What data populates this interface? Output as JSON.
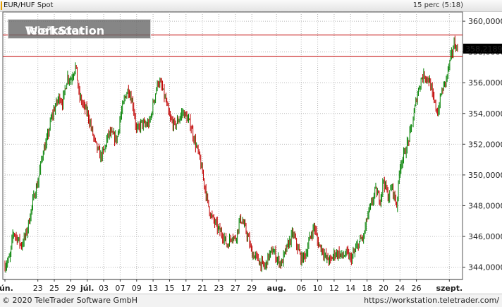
{
  "header": {
    "symbol": "EUR/HUF Spot",
    "interval": "15 perc (5:18)"
  },
  "watermark": {
    "brand": "TeleTrader",
    "product": "WorkStation"
  },
  "footer": {
    "copyright": "© 2020  TeleTrader Software GmbH",
    "url": "https://workstation.teletrader.com/"
  },
  "colors": {
    "up": "#008000",
    "down": "#c00000",
    "level_line": "#c00000",
    "grid": "#b8b8b8",
    "price_label_bg": "#000000"
  },
  "chart_data": {
    "type": "candlestick",
    "title": "EUR/HUF Spot",
    "ylim": [
      343.2,
      360.6
    ],
    "y_ticks": [
      344,
      346,
      348,
      350,
      352,
      354,
      356,
      358,
      360
    ],
    "y_tick_labels": [
      "344,0000",
      "346,0000",
      "348,0000",
      "350,0000",
      "352,0000",
      "354,0000",
      "356,0000",
      "358,0000",
      "360,0000"
    ],
    "x_ticks": [
      {
        "label": "jún.",
        "bold": true,
        "pos": 0
      },
      {
        "label": "23",
        "pos": 4
      },
      {
        "label": "25",
        "pos": 6
      },
      {
        "label": "29",
        "pos": 8
      },
      {
        "label": "júl.",
        "bold": true,
        "pos": 10
      },
      {
        "label": "03",
        "pos": 12
      },
      {
        "label": "07",
        "pos": 14
      },
      {
        "label": "09",
        "pos": 16
      },
      {
        "label": "13",
        "pos": 18
      },
      {
        "label": "15",
        "pos": 20
      },
      {
        "label": "17",
        "pos": 22
      },
      {
        "label": "21",
        "pos": 24
      },
      {
        "label": "23",
        "pos": 26
      },
      {
        "label": "27",
        "pos": 28
      },
      {
        "label": "29",
        "pos": 30
      },
      {
        "label": "aug.",
        "bold": true,
        "pos": 33
      },
      {
        "label": "06",
        "pos": 36
      },
      {
        "label": "10",
        "pos": 38
      },
      {
        "label": "12",
        "pos": 40
      },
      {
        "label": "14",
        "pos": 42
      },
      {
        "label": "18",
        "pos": 44
      },
      {
        "label": "20",
        "pos": 46
      },
      {
        "label": "24",
        "pos": 48
      },
      {
        "label": "26",
        "pos": 50
      },
      {
        "label": "szept.",
        "bold": true,
        "pos": 54
      }
    ],
    "grid": true,
    "level_lines": [
      359.1,
      357.7
    ],
    "last_price": 358.2189,
    "last_price_label": "358,2189",
    "path": [
      [
        0,
        344.1
      ],
      [
        0.6,
        344.6
      ],
      [
        1,
        346.3
      ],
      [
        1.6,
        345.8
      ],
      [
        2,
        345.4
      ],
      [
        2.6,
        346.2
      ],
      [
        3,
        347.2
      ],
      [
        3.6,
        348.8
      ],
      [
        4,
        349.5
      ],
      [
        4.6,
        351.5
      ],
      [
        5,
        352.0
      ],
      [
        5.6,
        353.6
      ],
      [
        6,
        354.3
      ],
      [
        6.6,
        355.1
      ],
      [
        7,
        354.7
      ],
      [
        7.6,
        356.4
      ],
      [
        8,
        356.2
      ],
      [
        8.6,
        357.1
      ],
      [
        9,
        355.2
      ],
      [
        9.6,
        354.4
      ],
      [
        10,
        354.1
      ],
      [
        10.6,
        352.8
      ],
      [
        11,
        352.0
      ],
      [
        11.6,
        351.2
      ],
      [
        12,
        351.5
      ],
      [
        12.6,
        352.7
      ],
      [
        13,
        352.6
      ],
      [
        13.6,
        352.3
      ],
      [
        14,
        353.7
      ],
      [
        14.6,
        355.1
      ],
      [
        15,
        355.6
      ],
      [
        15.6,
        354.5
      ],
      [
        16,
        352.8
      ],
      [
        16.6,
        353.4
      ],
      [
        17,
        353.2
      ],
      [
        17.6,
        353.4
      ],
      [
        18,
        354.6
      ],
      [
        18.6,
        356.1
      ],
      [
        19,
        355.8
      ],
      [
        19.6,
        354.7
      ],
      [
        20,
        353.7
      ],
      [
        20.6,
        353.2
      ],
      [
        21,
        353.5
      ],
      [
        21.6,
        354.1
      ],
      [
        22,
        353.8
      ],
      [
        22.6,
        353.2
      ],
      [
        23,
        352.3
      ],
      [
        23.6,
        351.2
      ],
      [
        24,
        350.1
      ],
      [
        24.6,
        348.3
      ],
      [
        25,
        347.4
      ],
      [
        25.6,
        346.8
      ],
      [
        26,
        346.4
      ],
      [
        26.6,
        346.0
      ],
      [
        27,
        345.4
      ],
      [
        27.6,
        346.1
      ],
      [
        28,
        345.8
      ],
      [
        28.6,
        347.2
      ],
      [
        29,
        346.8
      ],
      [
        29.6,
        345.8
      ],
      [
        30,
        344.9
      ],
      [
        30.6,
        344.6
      ],
      [
        31,
        344.3
      ],
      [
        31.6,
        344.0
      ],
      [
        32,
        344.7
      ],
      [
        32.6,
        345.1
      ],
      [
        33,
        344.6
      ],
      [
        33.6,
        344.2
      ],
      [
        34,
        344.9
      ],
      [
        34.6,
        345.7
      ],
      [
        35,
        346.2
      ],
      [
        35.6,
        345.2
      ],
      [
        36,
        344.5
      ],
      [
        36.6,
        344.9
      ],
      [
        37,
        345.8
      ],
      [
        37.6,
        346.7
      ],
      [
        38,
        345.6
      ],
      [
        38.6,
        345.1
      ],
      [
        39,
        344.6
      ],
      [
        39.6,
        344.4
      ],
      [
        40,
        344.9
      ],
      [
        40.6,
        344.9
      ],
      [
        41,
        344.7
      ],
      [
        41.6,
        344.9
      ],
      [
        42,
        344.5
      ],
      [
        42.6,
        345.1
      ],
      [
        43,
        345.6
      ],
      [
        43.6,
        346.0
      ],
      [
        44,
        347.2
      ],
      [
        44.6,
        348.2
      ],
      [
        45,
        349.0
      ],
      [
        45.6,
        348.4
      ],
      [
        46,
        349.7
      ],
      [
        46.6,
        348.5
      ],
      [
        47,
        349.3
      ],
      [
        47.6,
        348.0
      ],
      [
        48,
        350.6
      ],
      [
        48.6,
        351.5
      ],
      [
        49,
        352.2
      ],
      [
        49.6,
        353.6
      ],
      [
        50,
        355.0
      ],
      [
        50.6,
        356.3
      ],
      [
        51,
        356.5
      ],
      [
        51.6,
        356.1
      ],
      [
        52,
        355.0
      ],
      [
        52.6,
        354.0
      ],
      [
        53,
        355.3
      ],
      [
        53.6,
        356.2
      ],
      [
        54,
        357.2
      ],
      [
        54.6,
        358.6
      ],
      [
        55,
        358.1
      ]
    ]
  }
}
